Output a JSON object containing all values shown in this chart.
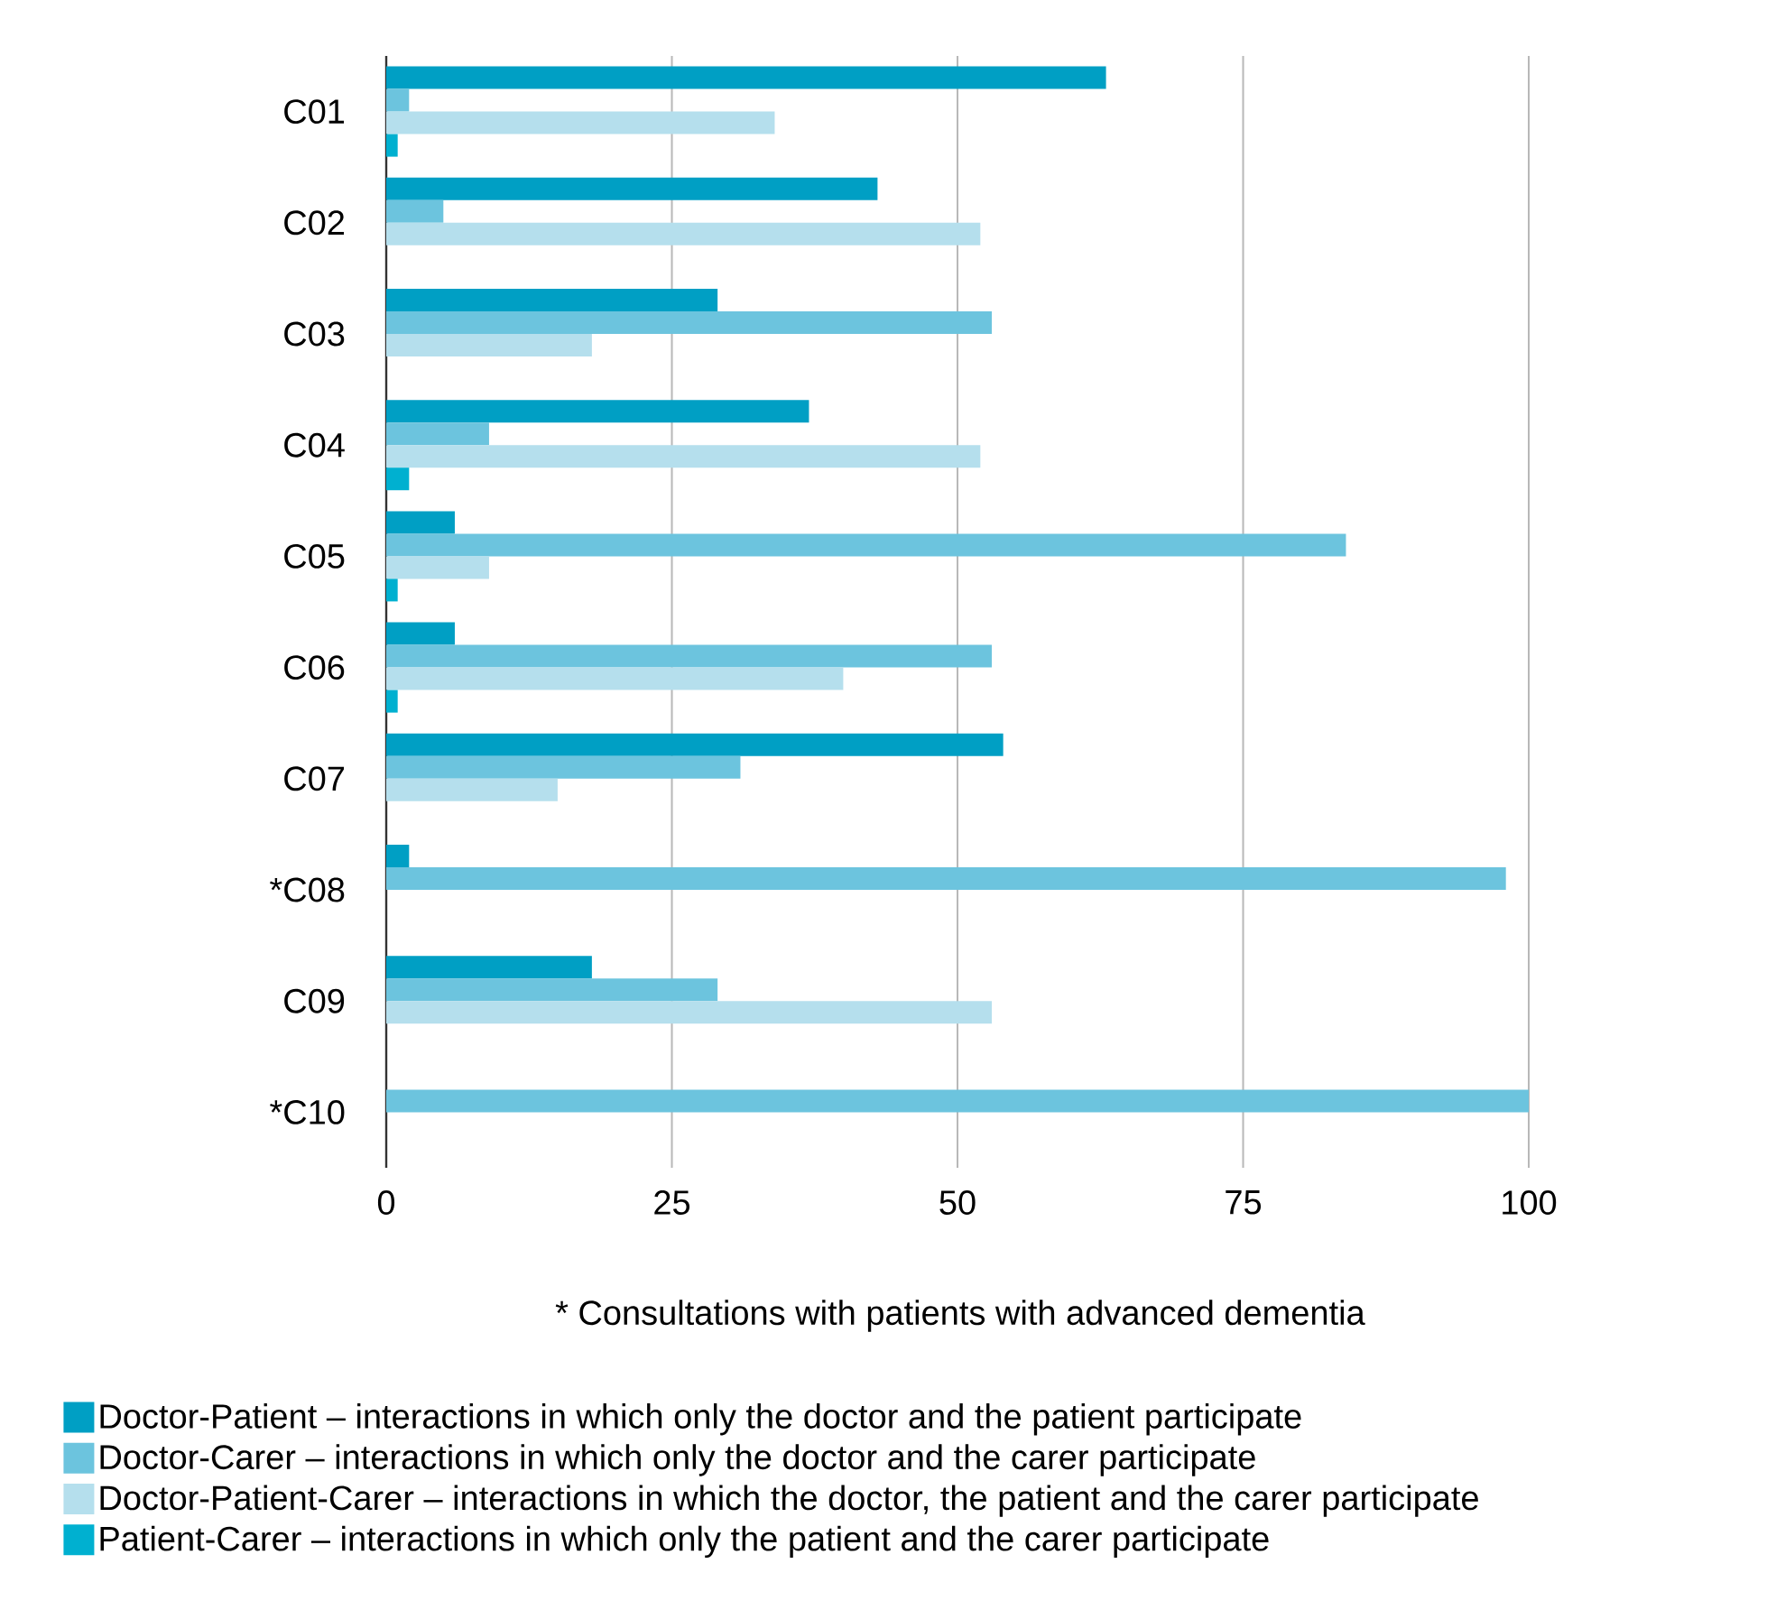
{
  "chart_data": {
    "type": "bar",
    "orientation": "horizontal",
    "categories": [
      "C01",
      "C02",
      "C03",
      "C04",
      "C05",
      "C06",
      "C07",
      "*C08",
      "C09",
      "*C10"
    ],
    "series": [
      {
        "name": "Doctor-Patient – interactions in which only the doctor and the patient participate",
        "color": "#009fc4",
        "values": [
          63,
          43,
          29,
          37,
          6,
          6,
          54,
          2,
          18,
          0
        ]
      },
      {
        "name": "Doctor-Carer – interactions in which only the doctor and the carer participate",
        "color": "#6cc4de",
        "values": [
          2,
          5,
          53,
          9,
          84,
          53,
          31,
          98,
          29,
          100
        ]
      },
      {
        "name": "Doctor-Patient-Carer – interactions in which the doctor, the patient and the carer participate",
        "color": "#b5dfed",
        "values": [
          34,
          52,
          18,
          52,
          9,
          40,
          15,
          0,
          53,
          0
        ]
      },
      {
        "name": "Patient-Carer – interactions in which only the patient and the carer participate",
        "color": "#00b0d0",
        "values": [
          1,
          0,
          0,
          2,
          1,
          1,
          0,
          0,
          0,
          0
        ]
      }
    ],
    "xlim": [
      0,
      100
    ],
    "xticks": [
      0,
      25,
      50,
      75,
      100
    ],
    "grid": "x",
    "legend": "bottom",
    "annotations": [
      "* Consultations with patients with advanced dementia"
    ]
  }
}
